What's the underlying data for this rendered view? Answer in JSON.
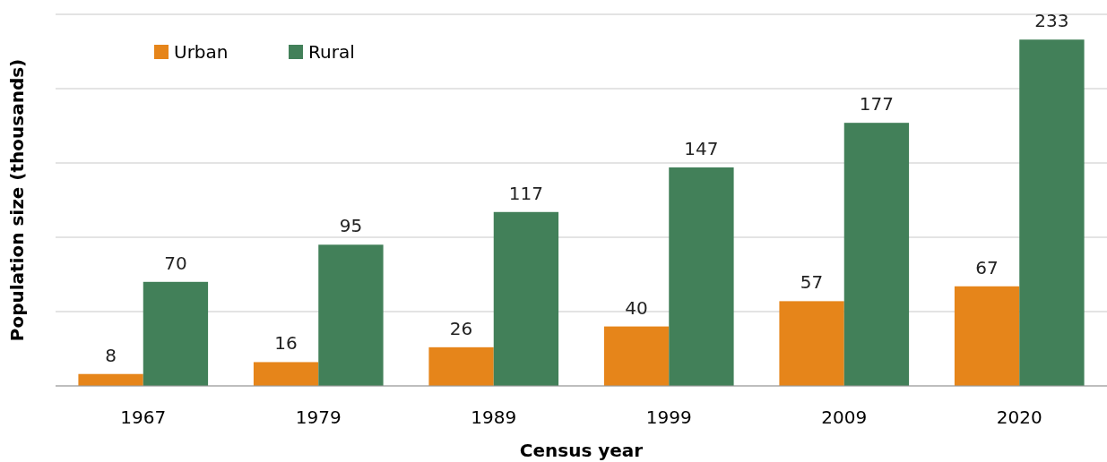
{
  "chart_data": {
    "type": "bar",
    "xlabel": "Census year",
    "ylabel": "Population size (thousands)",
    "categories": [
      "1967",
      "1979",
      "1989",
      "1999",
      "2009",
      "2020"
    ],
    "series": [
      {
        "name": "Urban",
        "color": "#e6851a",
        "values": [
          8,
          16,
          26,
          40,
          57,
          67
        ]
      },
      {
        "name": "Rural",
        "color": "#428059",
        "values": [
          70,
          95,
          117,
          147,
          177,
          233
        ]
      }
    ],
    "ylim": [
      0,
      250
    ],
    "yticks": [
      {
        "value": 0,
        "label": null
      },
      {
        "value": 50,
        "label": null
      },
      {
        "value": 100,
        "label": null
      },
      {
        "value": 150,
        "label": null
      },
      {
        "value": 200,
        "label": null
      },
      {
        "value": 250,
        "label": null
      }
    ],
    "grid": "y",
    "legend": "top left",
    "tick_labels": "x",
    "data_labels": true
  }
}
